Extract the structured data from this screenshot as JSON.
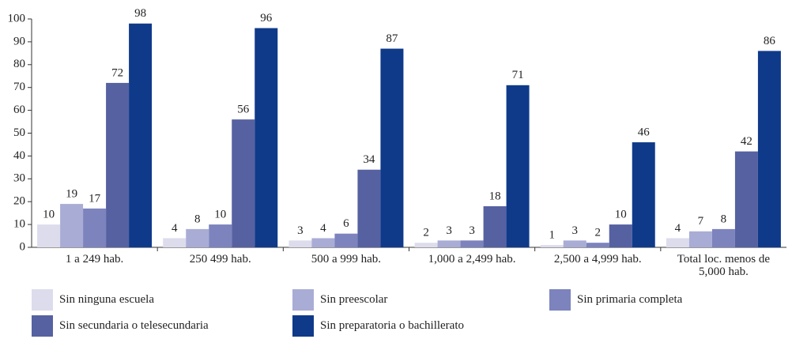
{
  "chart_data": {
    "type": "bar",
    "categories": [
      "1 a 249 hab.",
      "250 499 hab.",
      "500 a 999 hab.",
      "1,000 a 2,499 hab.",
      "2,500 a 4,999 hab.",
      "Total loc. menos de 5,000 hab."
    ],
    "series": [
      {
        "name": "Sin ninguna escuela",
        "color": "#dcdced",
        "values": [
          10,
          4,
          3,
          2,
          1,
          4
        ]
      },
      {
        "name": "Sin preescolar",
        "color": "#a9acd5",
        "values": [
          19,
          8,
          4,
          3,
          3,
          7
        ]
      },
      {
        "name": "Sin primaria completa",
        "color": "#7c83bd",
        "values": [
          17,
          10,
          6,
          3,
          2,
          8
        ]
      },
      {
        "name": "Sin secundaria o telesecundaria",
        "color": "#5661a1",
        "values": [
          72,
          56,
          34,
          18,
          10,
          42
        ]
      },
      {
        "name": "Sin preparatoria o bachillerato",
        "color": "#0f3a8a",
        "values": [
          98,
          96,
          87,
          71,
          46,
          86
        ]
      }
    ],
    "ylim": [
      0,
      100
    ],
    "yticks": [
      0,
      10,
      20,
      30,
      40,
      50,
      60,
      70,
      80,
      90,
      100
    ],
    "grid": false
  }
}
